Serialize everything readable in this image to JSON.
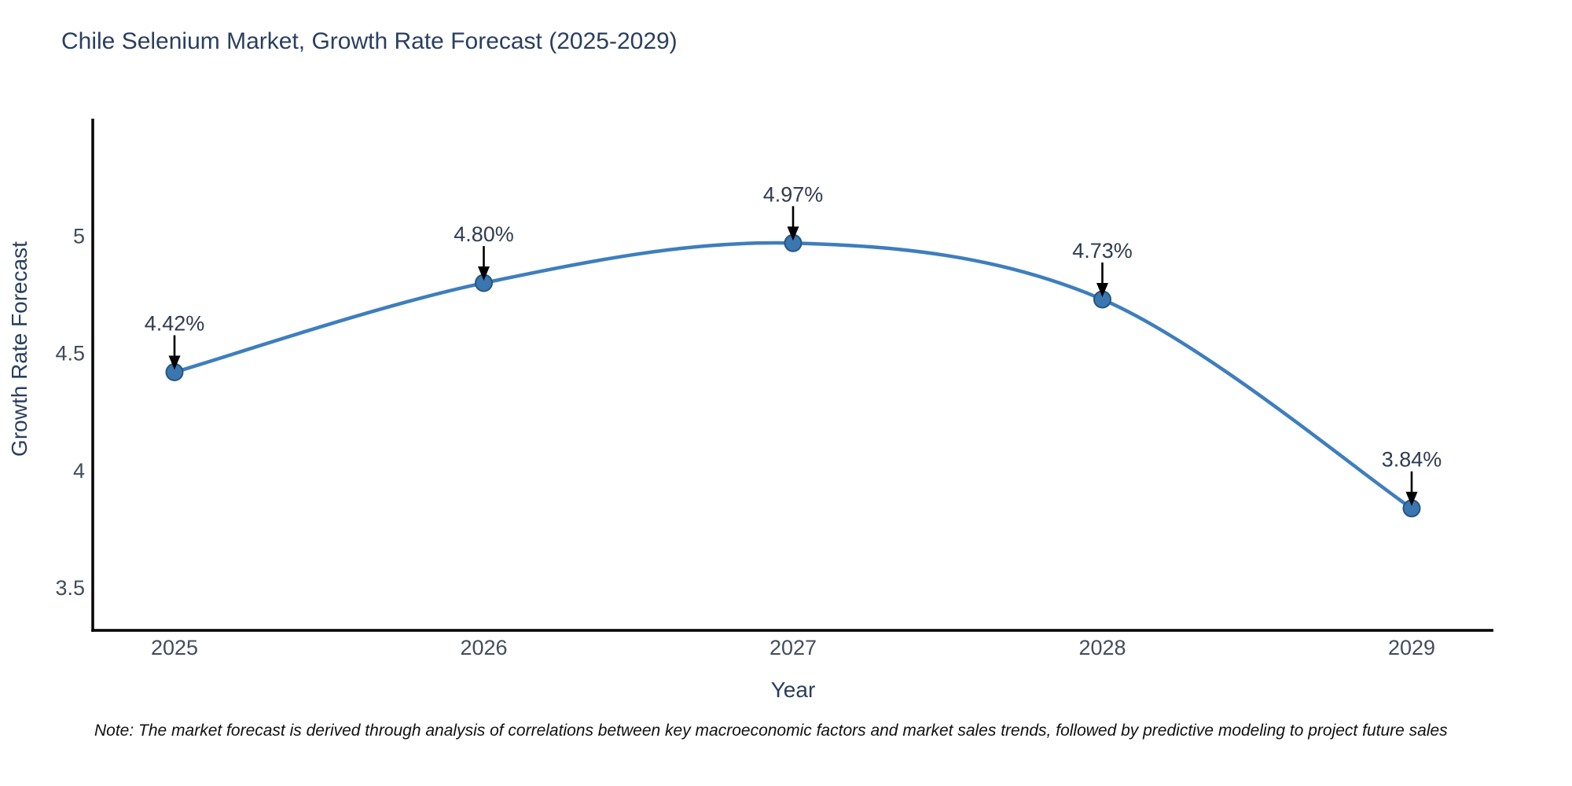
{
  "chart_data": {
    "type": "line",
    "title": "Chile Selenium Market, Growth Rate Forecast (2025-2029)",
    "xlabel": "Year",
    "ylabel": "Growth Rate Forecast",
    "categories": [
      "2025",
      "2026",
      "2027",
      "2028",
      "2029"
    ],
    "series": [
      {
        "name": "Growth Rate Forecast",
        "values": [
          4.42,
          4.8,
          4.97,
          4.73,
          3.84
        ]
      }
    ],
    "point_labels": [
      "4.42%",
      "4.80%",
      "4.97%",
      "4.73%",
      "3.84%"
    ],
    "yticks": [
      3.5,
      4,
      4.5,
      5
    ],
    "ylim": [
      3.32,
      5.5
    ],
    "line_shape": "spline",
    "grid": false,
    "legend": "none",
    "colors": {
      "line": "#3e7ebd",
      "marker_fill": "#3a76af",
      "marker_edge": "#265681",
      "arrow": "#000000",
      "axis_line": "#000000",
      "tick_text": "#424c5b",
      "label_text": "#2f3c50",
      "title_text": "#2a3f5f",
      "background": "#ffffff"
    }
  },
  "note": "Note: The market forecast is derived through analysis of correlations between key macroeconomic factors and market sales trends, followed by predictive modeling to project future sales"
}
